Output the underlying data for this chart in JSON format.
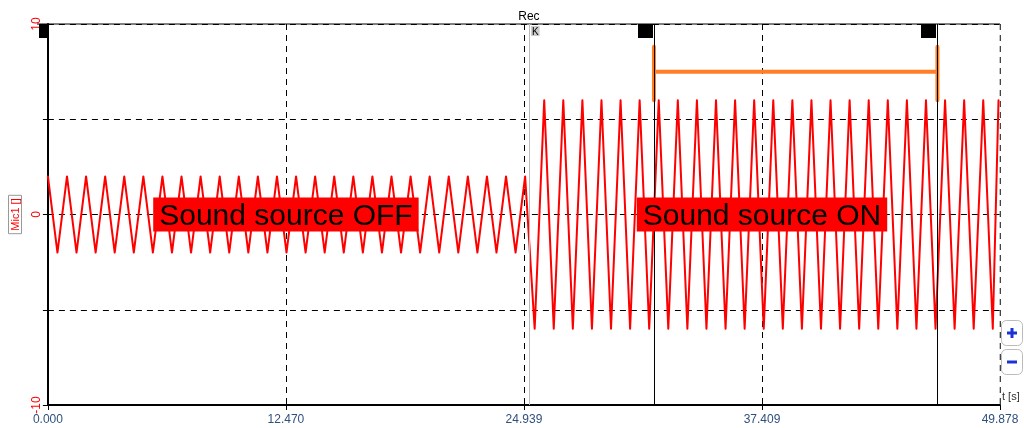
{
  "chart_data": {
    "type": "line",
    "title": "Rec",
    "xlabel": "t [s]",
    "ylabel": "Mic1 []",
    "xlim": [
      0,
      49.878
    ],
    "xticks": [
      {
        "value": 0,
        "label": "0.000"
      },
      {
        "value": 12.47,
        "label": "12.470"
      },
      {
        "value": 24.939,
        "label": "24.939"
      },
      {
        "value": 37.409,
        "label": "37.409"
      },
      {
        "value": 49.878,
        "label": "49.878"
      }
    ],
    "ylim": [
      -10,
      10
    ],
    "yticks": [
      -10,
      {
        "value": -5,
        "label": null
      },
      0,
      {
        "value": 5,
        "label": null
      },
      10
    ],
    "grid": true,
    "marker": "none",
    "series": [
      {
        "color": "#ff0000",
        "x": [
          0,
          0.5,
          1,
          1.5,
          2,
          2.5,
          3,
          3.5,
          4,
          4.5,
          5,
          5.5,
          6,
          6.5,
          7,
          7.5,
          8,
          8.5,
          9,
          9.5,
          10,
          10.5,
          11,
          11.5,
          12,
          12.5,
          13,
          13.5,
          14,
          14.5,
          15,
          15.5,
          16,
          16.5,
          17,
          17.5,
          18,
          18.5,
          19,
          19.5,
          20,
          20.5,
          21,
          21.5,
          22,
          22.5,
          23,
          23.5,
          24,
          24.5,
          25,
          25.5,
          26,
          26.5,
          27,
          27.5,
          28,
          28.5,
          29,
          29.5,
          30,
          30.5,
          31,
          31.5,
          32,
          32.5,
          33,
          33.5,
          34,
          34.5,
          35,
          35.5,
          36,
          36.5,
          37,
          37.5,
          38,
          38.5,
          39,
          39.5,
          40,
          40.5,
          41,
          41.5,
          42,
          42.5,
          43,
          43.5,
          44,
          44.5,
          45,
          45.5,
          46,
          46.5,
          47,
          47.5,
          48,
          48.5,
          49,
          49.5,
          49.8
        ],
        "values": [
          2,
          -2,
          2,
          -2,
          2,
          -2,
          2,
          -2,
          2,
          -2,
          2,
          -2,
          2,
          -2,
          2,
          -2,
          2,
          -2,
          2,
          -2,
          2,
          -2,
          2,
          -2,
          2,
          -2,
          2,
          -2,
          2,
          -2,
          2,
          -2,
          2,
          -2,
          2,
          -2,
          2,
          -2,
          2,
          -2,
          2,
          -2,
          2,
          -2,
          2,
          -2,
          2,
          -2,
          2,
          -2,
          2,
          -6,
          6,
          -6,
          6,
          -6,
          6,
          -6,
          6,
          -6,
          6,
          -6,
          6,
          -6,
          6,
          -6,
          6,
          -6,
          6,
          -6,
          6,
          -6,
          6,
          -6,
          6,
          -6,
          6,
          -6,
          6,
          -6,
          6,
          -6,
          6,
          -6,
          6,
          -6,
          6,
          -6,
          6,
          -6,
          6,
          -6,
          6,
          -6,
          6,
          -6,
          6,
          -6,
          6,
          -6,
          6
        ]
      },
      {
        "color": "#ff7f27",
        "x": [
          31.75,
          31.75,
          31.75,
          46.6,
          46.6,
          46.6
        ],
        "values": [
          6,
          8.8,
          7.5,
          7.5,
          8.8,
          6
        ]
      }
    ],
    "ref_lines": [
      {
        "axis": "x",
        "value": 25.2,
        "color": "#bbbbbb",
        "line_style": "solid"
      },
      {
        "axis": "x",
        "value": 31.75,
        "color": "#000000",
        "line_style": "solid"
      },
      {
        "axis": "x",
        "value": 46.6,
        "color": "#000000",
        "line_style": "solid"
      }
    ],
    "annotations": [
      {
        "text": "K",
        "x": 25.2,
        "y": 10
      },
      {
        "text": "Sound source OFF",
        "x": 12.47,
        "y": 0
      },
      {
        "text": "Sound source ON",
        "x": 37.409,
        "y": 0
      }
    ]
  }
}
